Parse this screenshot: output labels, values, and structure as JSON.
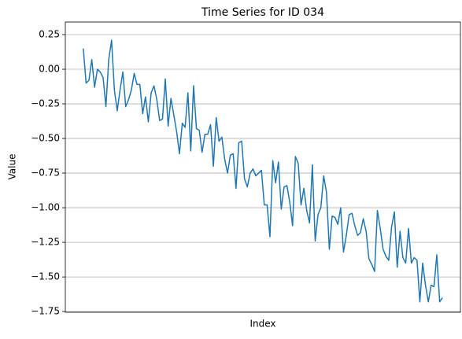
{
  "chart_data": {
    "type": "line",
    "title": "Time Series for ID 034",
    "x_label": "Index",
    "y_label": "Value",
    "series": [
      {
        "name": "ID 034",
        "color": "#1f77b4",
        "values": [
          0.15,
          -0.1,
          -0.08,
          0.07,
          -0.13,
          0.0,
          -0.02,
          -0.06,
          -0.27,
          0.07,
          0.21,
          -0.15,
          -0.3,
          -0.15,
          -0.02,
          -0.27,
          -0.22,
          -0.15,
          -0.03,
          -0.11,
          -0.11,
          -0.32,
          -0.2,
          -0.38,
          -0.17,
          -0.12,
          -0.22,
          -0.37,
          -0.36,
          -0.07,
          -0.41,
          -0.21,
          -0.33,
          -0.45,
          -0.61,
          -0.39,
          -0.42,
          -0.17,
          -0.59,
          -0.12,
          -0.43,
          -0.44,
          -0.6,
          -0.47,
          -0.47,
          -0.4,
          -0.7,
          -0.35,
          -0.52,
          -0.49,
          -0.65,
          -0.75,
          -0.62,
          -0.61,
          -0.86,
          -0.53,
          -0.52,
          -0.79,
          -0.85,
          -0.75,
          -0.72,
          -0.77,
          -0.75,
          -0.73,
          -0.98,
          -0.98,
          -1.21,
          -0.66,
          -0.82,
          -0.67,
          -1.01,
          -0.85,
          -0.84,
          -0.96,
          -1.13,
          -0.63,
          -0.68,
          -0.98,
          -0.86,
          -1.02,
          -1.11,
          -0.69,
          -1.24,
          -1.05,
          -1.0,
          -0.77,
          -0.89,
          -1.3,
          -1.06,
          -1.07,
          -1.12,
          -1.0,
          -1.32,
          -1.2,
          -1.05,
          -1.04,
          -1.13,
          -1.2,
          -1.18,
          -1.08,
          -1.17,
          -1.37,
          -1.41,
          -1.46,
          -1.02,
          -1.15,
          -1.3,
          -1.35,
          -1.38,
          -1.14,
          -1.03,
          -1.43,
          -1.17,
          -1.36,
          -1.4,
          -1.15,
          -1.4,
          -1.36,
          -1.38,
          -1.68,
          -1.4,
          -1.56,
          -1.68,
          -1.56,
          -1.57,
          -1.34,
          -1.68,
          -1.65
        ]
      }
    ],
    "xlim": [
      -6.35,
      133.35
    ],
    "ylim": [
      -1.755,
      0.341
    ],
    "yticks": [
      0.25,
      {
        "value": 0,
        "label": "0.00"
      },
      {
        "value": -0.25,
        "label": "−0.25"
      },
      {
        "value": -0.5,
        "label": "−0.50"
      },
      {
        "value": -0.75,
        "label": "−0.75"
      },
      {
        "value": -1,
        "label": "−1.00"
      },
      {
        "value": -1.25,
        "label": "−1.25"
      },
      {
        "value": -1.5,
        "label": "−1.50"
      },
      {
        "value": -1.75,
        "label": "−1.75"
      }
    ],
    "grid": "y"
  }
}
